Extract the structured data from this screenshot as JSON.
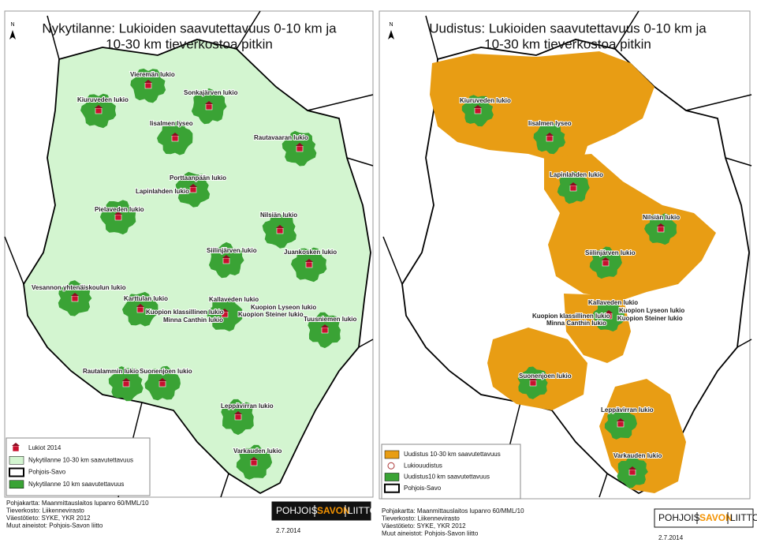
{
  "left_panel": {
    "title": [
      "Nykytilanne: Lukioiden saavutettavuus 0-10 km ja",
      "10-30 km tieverkostoa pitkin"
    ],
    "north": "N",
    "schools": [
      "Vieremän lukio",
      "Kiuruveden lukio",
      "Sonkajärven lukio",
      "Iisalmen lyseo",
      "Rautavaaran lukio",
      "Porttaanpään lukio",
      "Lapinlahden lukio",
      "Pielaveden lukio",
      "Nilsiän lukio",
      "Siilinjärven lukio",
      "Juankosken lukio",
      "Vesannon yhtenäiskoulun lukio",
      "Karttulan lukio",
      "Kallaveden lukio",
      "Kuopion Lyseon lukio",
      "Kuopion klassillinen lukio",
      "Kuopion Steiner lukio",
      "Minna Canthin lukio",
      "Tuusniemen lukio",
      "Rautalammin lukio",
      "Suonenjoen lukio",
      "Leppävirran lukio",
      "Varkauden lukio"
    ],
    "legend": [
      "Lukiot 2014",
      "Nykytilanne 10-30 km saavutettavuus",
      "Pohjois-Savo",
      "Nykytilanne 10 km saavutettavuus"
    ],
    "credits": [
      "Pohjakartta: Maanmittauslaitos lupanro 60/MML/10",
      "Tieverkosto: Liikennevirasto",
      "Väestötieto: SYKE, YKR 2012",
      "Muut aineistot: Pohjois-Savon liitto"
    ],
    "logo": [
      "POHJOIS",
      "SAVON",
      "LIITTO"
    ],
    "date": "2.7.2014"
  },
  "right_panel": {
    "title": [
      "Uudistus: Lukioiden saavutettavuus 0-10 km ja",
      "10-30 km tieverkostoa pitkin"
    ],
    "north": "N",
    "schools": [
      "Kiuruveden lukio",
      "Iisalmen lyseo",
      "Lapinlahden lukio",
      "Nilsiän lukio",
      "Siilinjärven lukio",
      "Kallaveden lukio",
      "Kuopion Lyseon lukio",
      "Kuopion klassillinen lukio",
      "Kuopion Steiner lukio",
      "Minna Canthin lukio",
      "Suonenjoen lukio",
      "Leppävirran lukio",
      "Varkauden lukio"
    ],
    "legend": [
      "Uudistus 10-30 km saavutettavuus",
      "Lukiouudistus",
      "Uudistus10 km saavutettavuus",
      "Pohjois-Savo"
    ],
    "credits": [
      "Pohjakartta: Maanmittauslaitos lupanro 60/MML/10",
      "Tieverkosto: Liikennevirasto",
      "Väestötieto: SYKE, YKR 2012",
      "Muut aineistot: Pohjois-Savon liitto"
    ],
    "logo": [
      "POHJOIS",
      "SAVON",
      "LIITTO"
    ],
    "date": "2.7.2014"
  }
}
